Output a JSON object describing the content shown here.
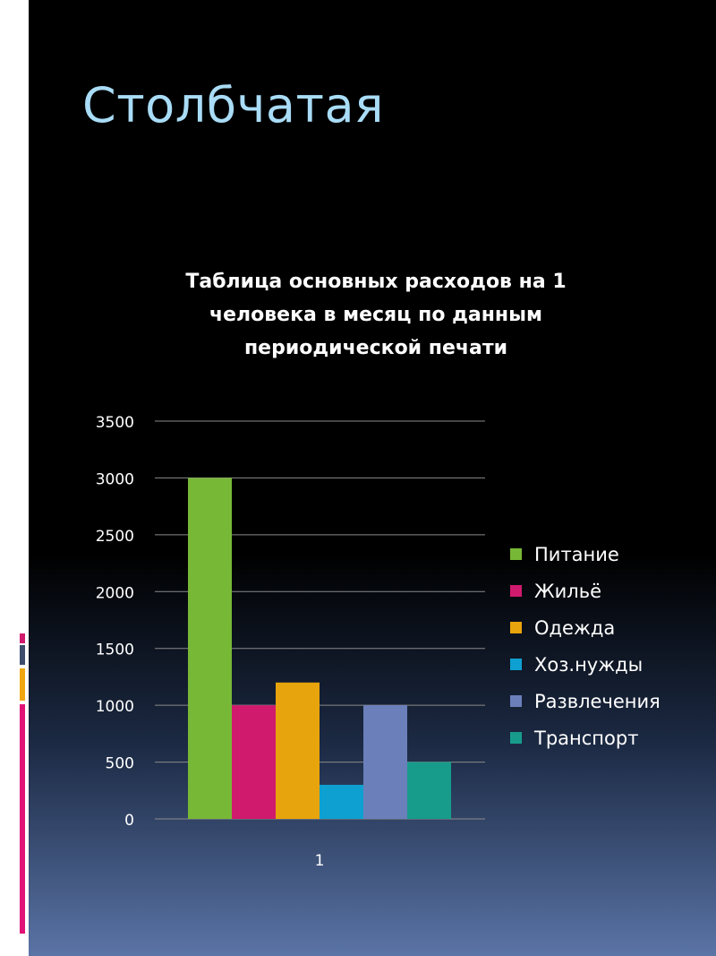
{
  "slide": {
    "title": "Столбчатая",
    "colors": {
      "title": "#a9dcf6",
      "background_top": "#000000",
      "background_bottom": "#5a74a6"
    }
  },
  "chart_data": {
    "type": "bar",
    "title": "Таблица основных расходов на 1 человека в месяц по данным периодической печати",
    "categories": [
      "1"
    ],
    "series": [
      {
        "name": "Питание",
        "values": [
          3000
        ],
        "color": "#77b836"
      },
      {
        "name": "Жильё",
        "values": [
          1000
        ],
        "color": "#d01a6d"
      },
      {
        "name": "Одежда",
        "values": [
          1200
        ],
        "color": "#e8a40c"
      },
      {
        "name": "Хоз.нужды",
        "values": [
          300
        ],
        "color": "#0ea0d0"
      },
      {
        "name": "Развлечения",
        "values": [
          1000
        ],
        "color": "#6b7fbb"
      },
      {
        "name": "Транспорт",
        "values": [
          500
        ],
        "color": "#179c8b"
      }
    ],
    "ylim": [
      0,
      3500
    ],
    "yticks": [
      "0",
      "500",
      "1000",
      "1500",
      "2000",
      "2500",
      "3000",
      "3500"
    ],
    "grid": true,
    "legend": "right"
  }
}
